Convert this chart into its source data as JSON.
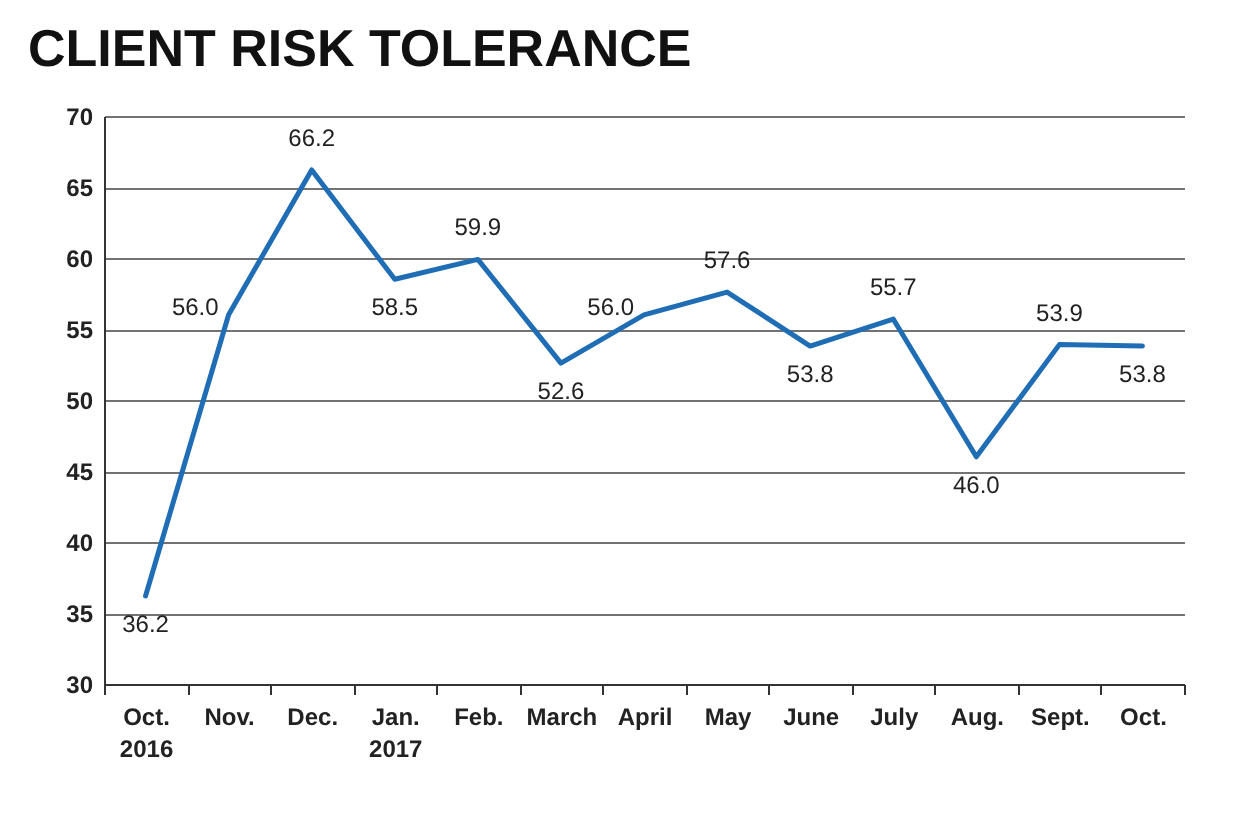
{
  "chart_data": {
    "type": "line",
    "title": "CLIENT RISK TOLERANCE",
    "categories": [
      "Oct.\n2016",
      "Nov.",
      "Dec.",
      "Jan.\n2017",
      "Feb.",
      "March",
      "April",
      "May",
      "June",
      "July",
      "Aug.",
      "Sept.",
      "Oct."
    ],
    "series": [
      {
        "color": "#1f6db4",
        "values": [
          36.2,
          56.0,
          66.2,
          58.5,
          59.9,
          52.6,
          56.0,
          57.6,
          53.8,
          55.7,
          46.0,
          53.9,
          53.8
        ],
        "value_labels": [
          "36.2",
          "56.0",
          "66.2",
          "58.5",
          "59.9",
          "52.6",
          "56.0",
          "57.6",
          "53.8",
          "55.7",
          "46.0",
          "53.9",
          "53.8"
        ]
      }
    ],
    "ylim": [
      30,
      70
    ],
    "yticks": [
      30,
      35,
      40,
      45,
      50,
      55,
      60,
      65,
      70
    ],
    "grid": "y",
    "marker": "none",
    "line_style": "solid"
  }
}
